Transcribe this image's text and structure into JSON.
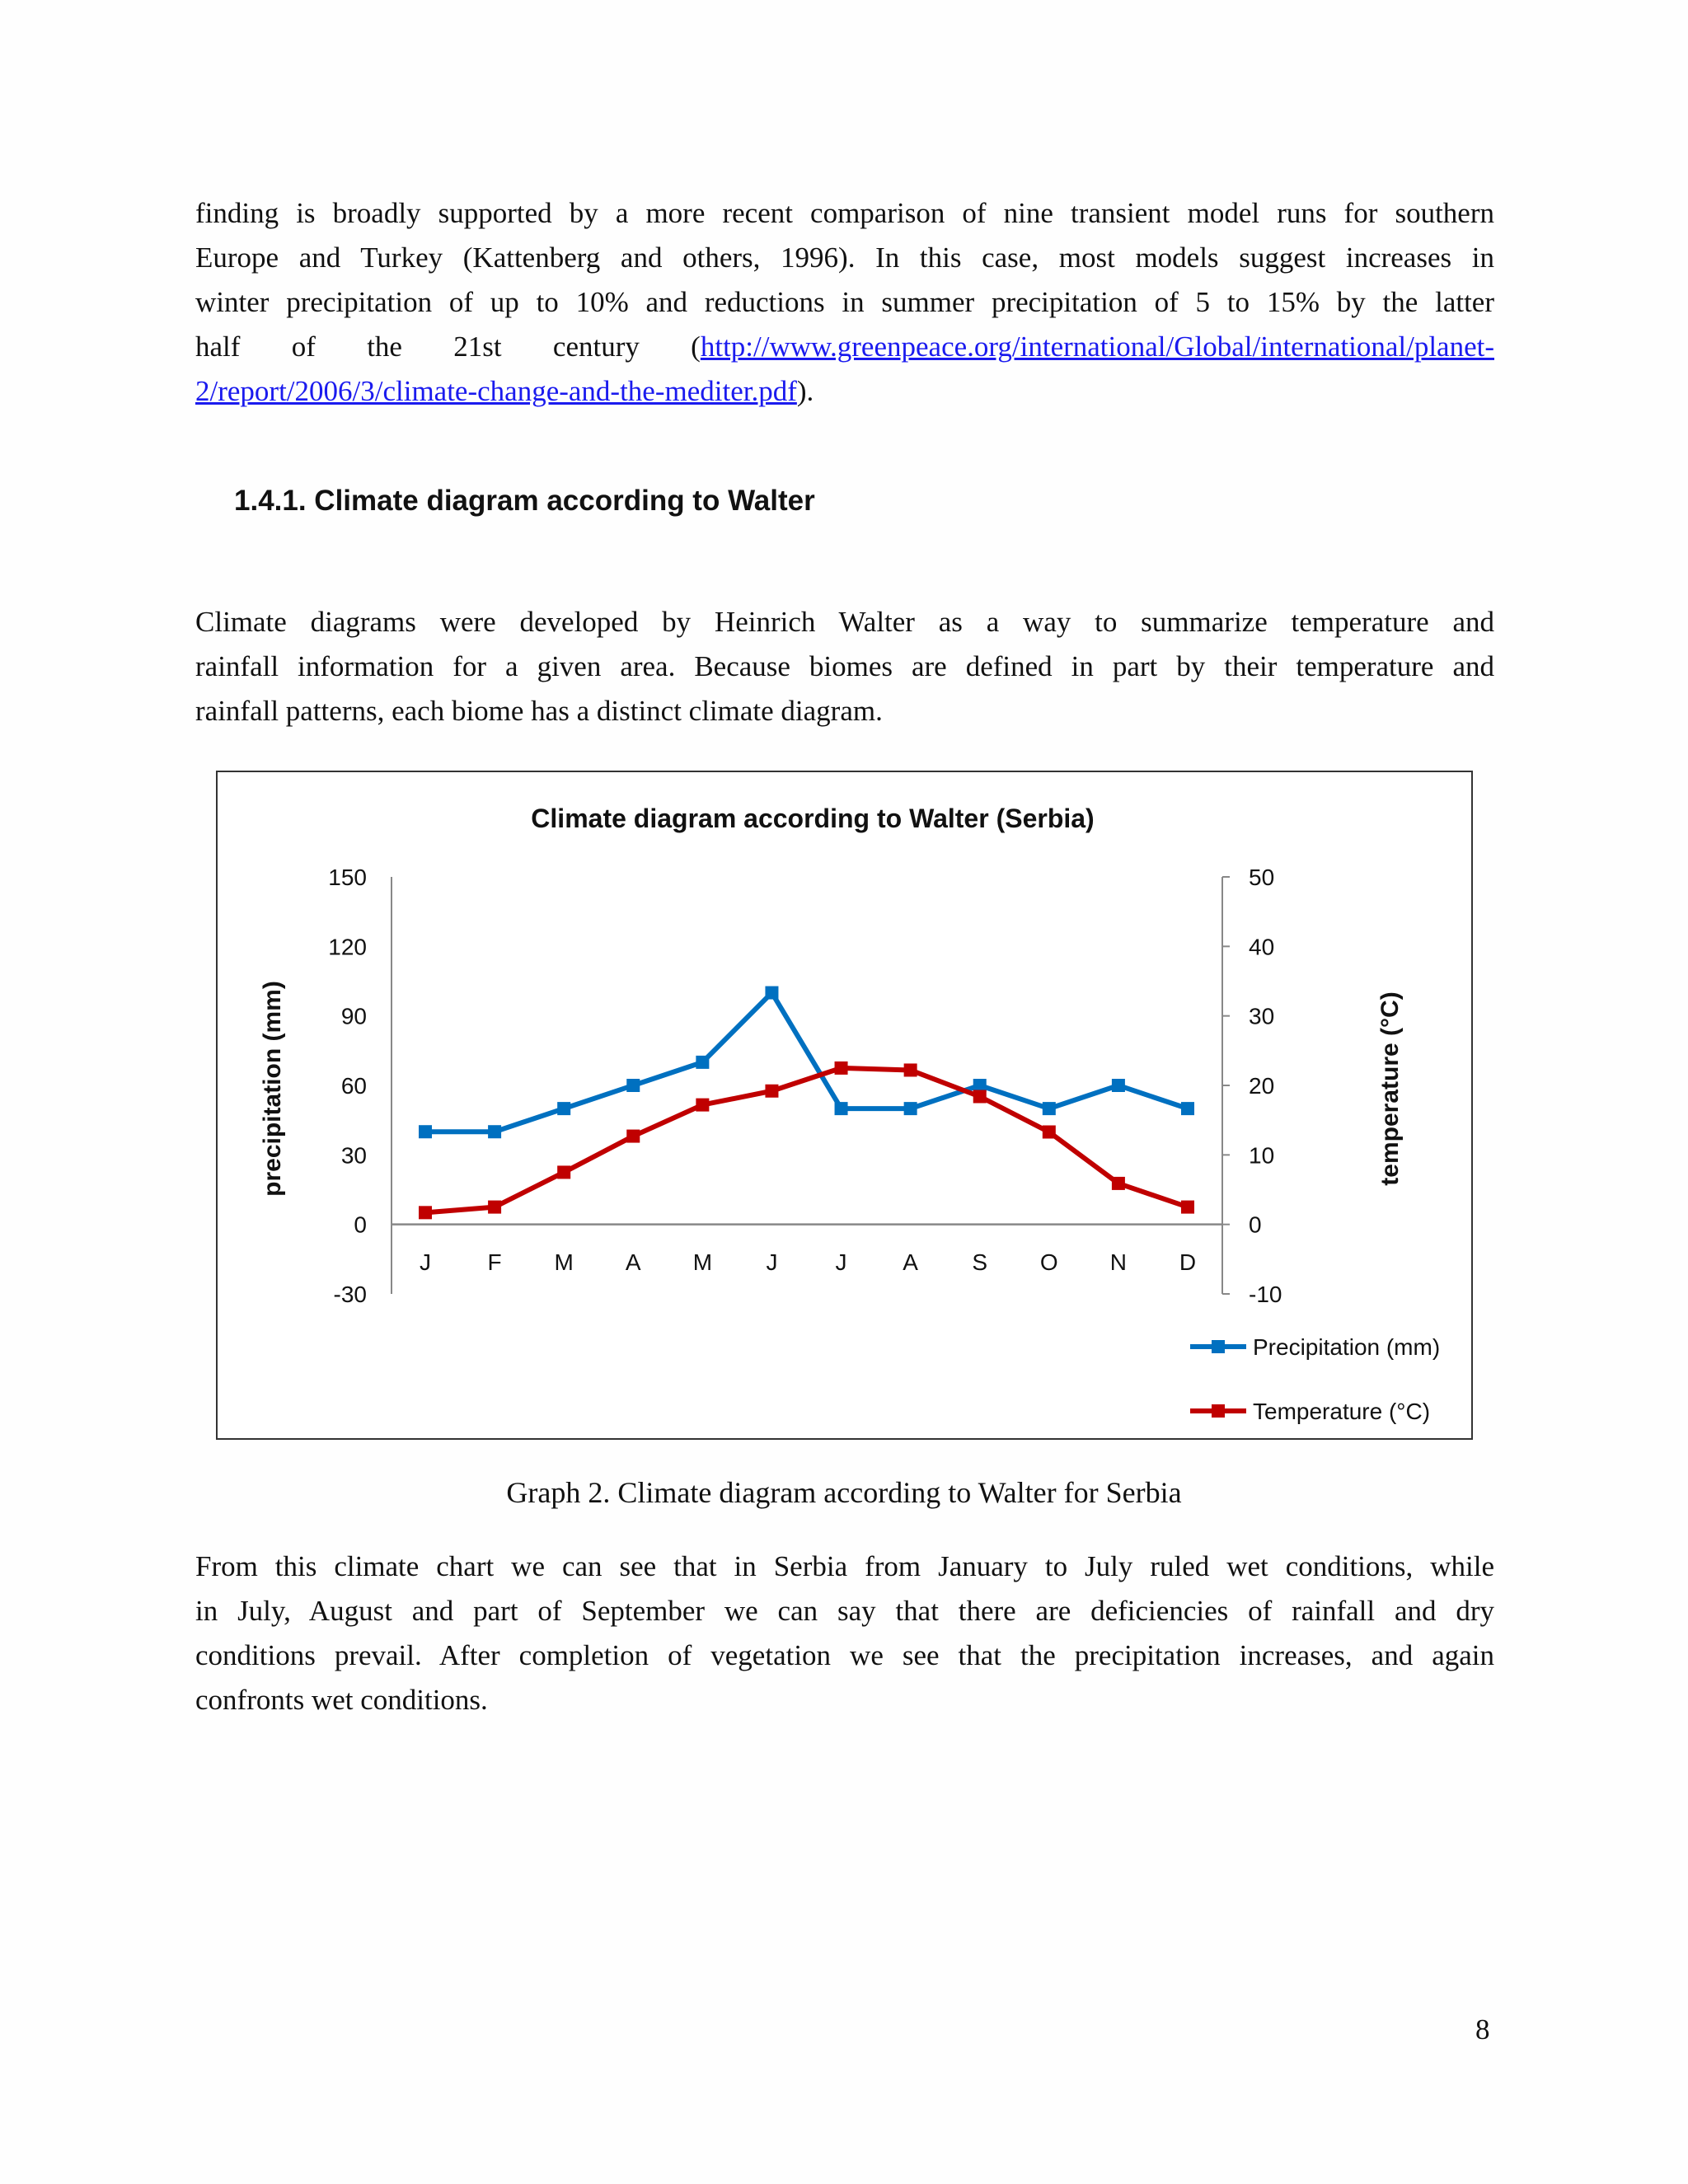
{
  "paragraph1": {
    "lines": [
      "finding is broadly supported by a more recent comparison of nine transient model runs for southern",
      "Europe and Turkey (Kattenberg and others, 1996). In this case, most models suggest increases in",
      "winter precipitation of up to 10% and reductions in summer precipitation of 5 to 15% by the latter"
    ],
    "line4_prefix": "half of the 21st century (",
    "link_part1": "http://www.greenpeace.org/international/Global/international/planet-",
    "link_part2": "2/report/2006/3/climate-change-and-the-mediter.pdf",
    "suffix": ")."
  },
  "heading": "1.4.1.  Climate diagram according to Walter",
  "paragraph2": {
    "lines": [
      "Climate diagrams were developed by Heinrich Walter as a way to summarize temperature and",
      "rainfall information for a given area. Because biomes are defined in part by their temperature and",
      "rainfall patterns, each biome has a distinct climate diagram."
    ]
  },
  "chart_data": {
    "type": "line",
    "title": "Climate diagram according to Walter  (Serbia)",
    "categories": [
      "J",
      "F",
      "M",
      "A",
      "M",
      "J",
      "J",
      "A",
      "S",
      "O",
      "N",
      "D"
    ],
    "y_left": {
      "label": "precipitation (mm)",
      "range": [
        -30,
        150
      ],
      "ticks": [
        "150",
        "120",
        "90",
        "60",
        "30",
        "0",
        "-30"
      ]
    },
    "y_right": {
      "label": "temperature  (°C)",
      "range": [
        -10,
        50
      ],
      "ticks": [
        "50",
        "40",
        "30",
        "20",
        "10",
        "0",
        "-10"
      ]
    },
    "grid": false,
    "legend_position": "bottom-right",
    "series": [
      {
        "name": "Precipitation (mm)",
        "axis": "left",
        "color": "#0070c0",
        "values": [
          40,
          40,
          50,
          60,
          70,
          100,
          50,
          50,
          60,
          50,
          60,
          50
        ]
      },
      {
        "name": "Temperature (°C)",
        "axis": "right",
        "color": "#c00000",
        "values": [
          1.7,
          2.5,
          7.5,
          12.7,
          17.2,
          19.2,
          22.5,
          22.2,
          18.4,
          13.3,
          5.9,
          2.5
        ]
      }
    ]
  },
  "caption": "Graph 2. Climate diagram according to Walter for Serbia",
  "paragraph3": {
    "lines": [
      "From this climate chart we can see that in Serbia from January to July ruled wet conditions, while",
      "in July, August and part of September we can say that there are deficiencies of rainfall and dry",
      "conditions prevail. After completion of vegetation we see that the precipitation increases, and again",
      "confronts wet conditions."
    ]
  },
  "page_number": "8"
}
